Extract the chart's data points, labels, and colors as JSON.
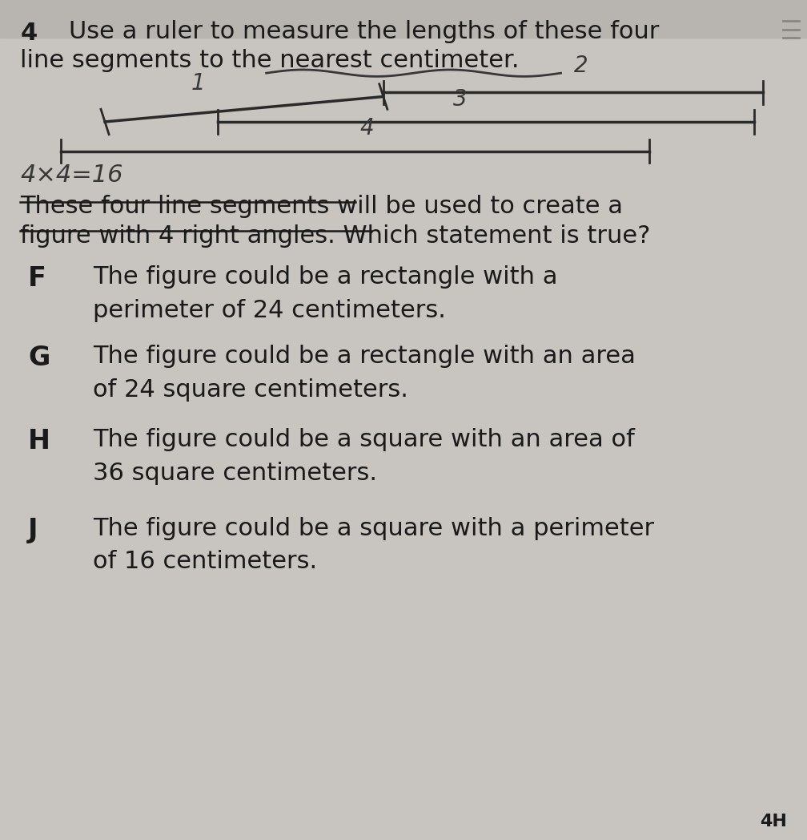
{
  "bg_color": "#c8c5c0",
  "page_color": "#dcdad6",
  "question_number": "4",
  "title_line1": "Use a ruler to measure the lengths of these four",
  "title_line2": "line segments to the nearest centimeter.",
  "handwritten_label1": "1",
  "handwritten_label2": "2",
  "handwritten_label3": "3",
  "handwritten_label4": "4",
  "handwritten_calc": "4×4=16",
  "body_line1": "These four line segments will be used to create a",
  "body_line2": "figure with 4 right angles. Which statement is true?",
  "choice_F_label": "F",
  "choice_F_line1": "The figure could be a rectangle with a",
  "choice_F_line2": "perimeter of 24 centimeters.",
  "choice_G_label": "G",
  "choice_G_line1": "The figure could be a rectangle with an area",
  "choice_G_line2": "of 24 square centimeters.",
  "choice_H_label": "H",
  "choice_H_line1": "The figure could be a square with an area of",
  "choice_H_line2": "36 square centimeters.",
  "choice_J_label": "J",
  "choice_J_line1": "The figure could be a square with a perimeter",
  "choice_J_line2": "of 16 centimeters.",
  "page_ref": "4H",
  "line_color": "#2a2a2a",
  "text_color": "#1a1a1a",
  "hand_color": "#383838",
  "title_fontsize": 22,
  "body_fontsize": 22,
  "choice_fontsize": 22,
  "hand_fontsize": 20
}
